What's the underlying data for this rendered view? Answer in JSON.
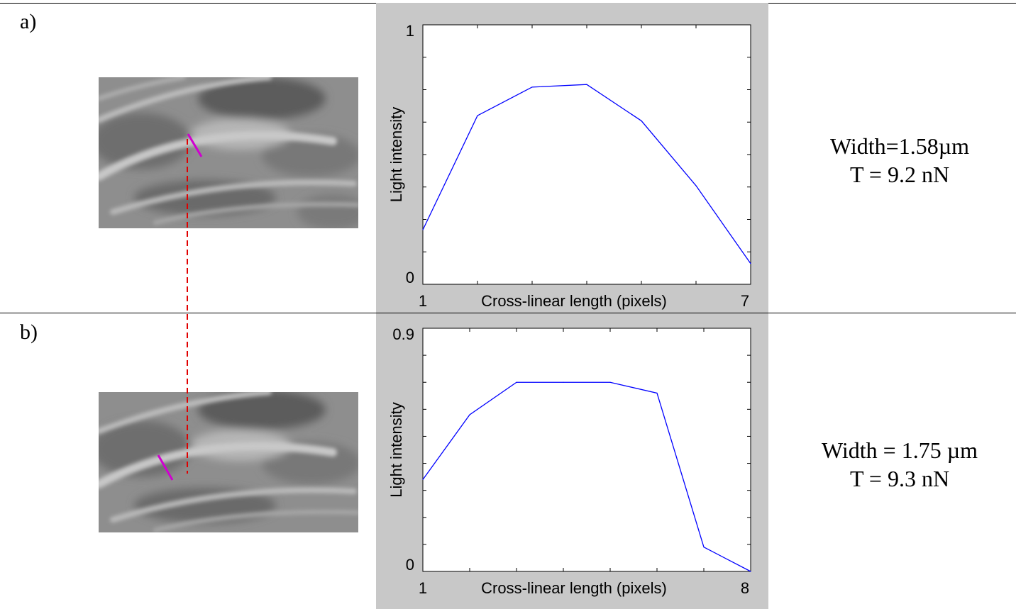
{
  "panels": [
    {
      "label": "a)",
      "result": {
        "width_text": "Width=1.58µm",
        "tension_text": "T = 9.2 nN"
      }
    },
    {
      "label": "b)",
      "result": {
        "width_text": "Width = 1.75 µm",
        "tension_text": "T = 9.3 nN"
      }
    }
  ],
  "colors": {
    "line": "#0000ff",
    "marker": "#d000d0",
    "connector": "#e00000",
    "plot_background": "#c8c8c8"
  },
  "chart_data": [
    {
      "type": "line",
      "xlabel": "Cross-linear length (pixels)",
      "ylabel": "Light intensity",
      "xlim": [
        1,
        7
      ],
      "ylim": [
        0,
        1
      ],
      "xtick_labels": [
        "1",
        "7"
      ],
      "ytick_labels": [
        "0",
        "1"
      ],
      "x_minor_ticks": [
        1,
        2,
        3,
        4,
        5,
        6,
        7
      ],
      "y_minor_ticks": [
        0,
        0.125,
        0.25,
        0.375,
        0.5,
        0.625,
        0.75,
        0.875,
        1
      ],
      "grid": false,
      "x": [
        1,
        2,
        3,
        4,
        5,
        6,
        7
      ],
      "values": [
        0.21,
        0.65,
        0.76,
        0.77,
        0.63,
        0.38,
        0.08
      ]
    },
    {
      "type": "line",
      "xlabel": "Cross-linear length (pixels)",
      "ylabel": "Light intensity",
      "xlim": [
        1,
        8
      ],
      "ylim": [
        0,
        0.9
      ],
      "xtick_labels": [
        "1",
        "8"
      ],
      "ytick_labels": [
        "0",
        "0.9"
      ],
      "x_minor_ticks": [
        1,
        2,
        3,
        4,
        5,
        6,
        7,
        8
      ],
      "y_minor_ticks": [
        0,
        0.1,
        0.2,
        0.3,
        0.4,
        0.5,
        0.6,
        0.7,
        0.8,
        0.9
      ],
      "grid": false,
      "x": [
        1,
        2,
        3,
        4,
        5,
        6,
        7,
        8
      ],
      "values": [
        0.34,
        0.58,
        0.7,
        0.7,
        0.7,
        0.66,
        0.09,
        0.0
      ]
    }
  ]
}
